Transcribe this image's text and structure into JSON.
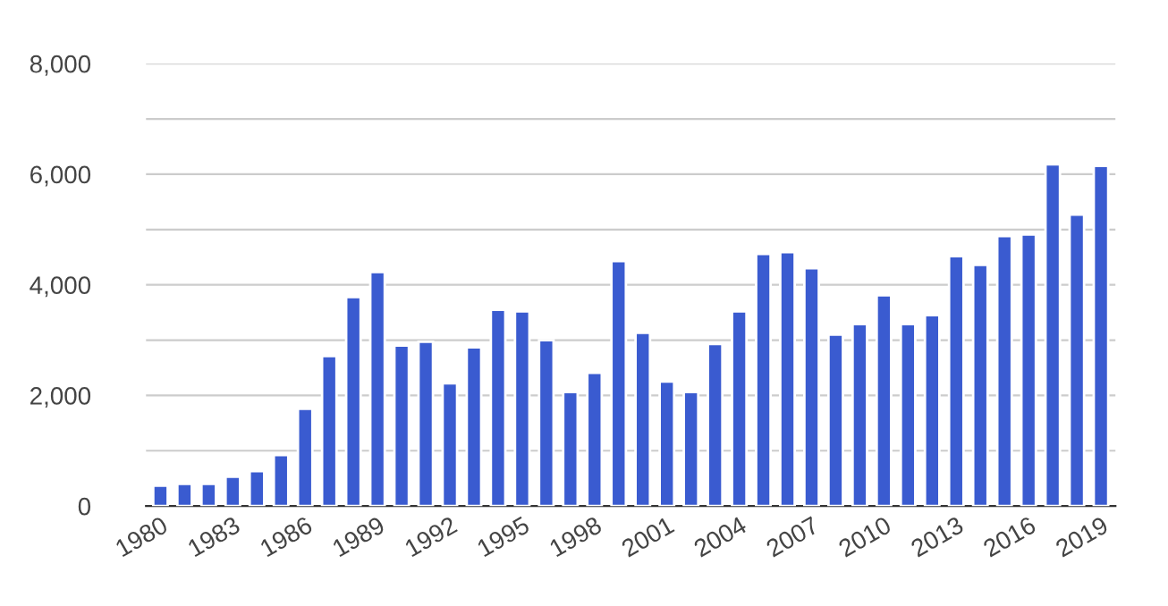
{
  "chart_data": {
    "type": "bar",
    "categories": [
      "1980",
      null,
      null,
      "1983",
      null,
      null,
      "1986",
      null,
      null,
      "1989",
      null,
      null,
      "1992",
      null,
      null,
      "1995",
      null,
      null,
      "1998",
      null,
      null,
      "2001",
      null,
      null,
      "2004",
      null,
      null,
      "2007",
      null,
      null,
      "2010",
      null,
      null,
      "2013",
      null,
      null,
      "2016",
      null,
      null,
      "2019"
    ],
    "values": [
      370,
      400,
      400,
      530,
      630,
      920,
      1760,
      2710,
      3780,
      4230,
      2900,
      2970,
      2220,
      2870,
      3550,
      3520,
      3000,
      2060,
      2410,
      4430,
      3130,
      2250,
      2060,
      2930,
      3520,
      4560,
      4590,
      4300,
      3100,
      3290,
      3810,
      3290,
      3450,
      4520,
      4360,
      4880,
      4910,
      6180,
      5270,
      6150
    ],
    "color": "#3a5bd0",
    "ylim": [
      0,
      8000
    ],
    "yticks": [
      {
        "value": 0,
        "label": "0"
      },
      {
        "value": 1000,
        "label": null
      },
      {
        "value": 2000,
        "label": "2,000"
      },
      {
        "value": 3000,
        "label": null
      },
      {
        "value": 4000,
        "label": "4,000"
      },
      {
        "value": 5000,
        "label": null
      },
      {
        "value": 6000,
        "label": "6,000"
      },
      {
        "value": 7000,
        "label": null
      },
      {
        "value": 8000,
        "label": "8,000"
      }
    ],
    "grid": "y"
  }
}
